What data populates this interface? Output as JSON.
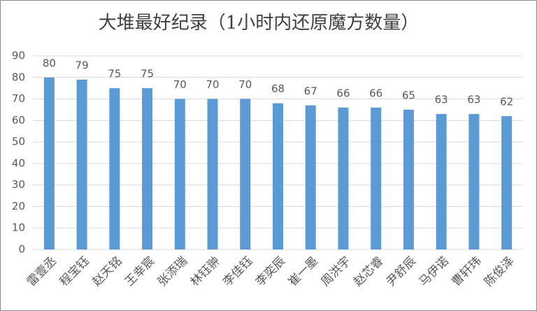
{
  "chart_data": {
    "type": "bar",
    "title": "大堆最好纪录（1小时内还原魔方数量）",
    "categories": [
      "雷壹丞",
      "程宝钰",
      "赵天铭",
      "王幸宸",
      "张添瑞",
      "林钰翀",
      "李佳钰",
      "李奕辰",
      "崔一墨",
      "周洪宇",
      "赵芯睿",
      "尹舒辰",
      "马伊诺",
      "曹轩玮",
      "陈俊泽"
    ],
    "values": [
      80,
      79,
      75,
      75,
      70,
      70,
      70,
      68,
      67,
      66,
      66,
      65,
      63,
      63,
      62
    ],
    "color": "#5b9bd5",
    "ylim": [
      0,
      90
    ],
    "yticks": [
      0,
      10,
      20,
      30,
      40,
      50,
      60,
      70,
      80,
      90
    ],
    "grid": true
  }
}
